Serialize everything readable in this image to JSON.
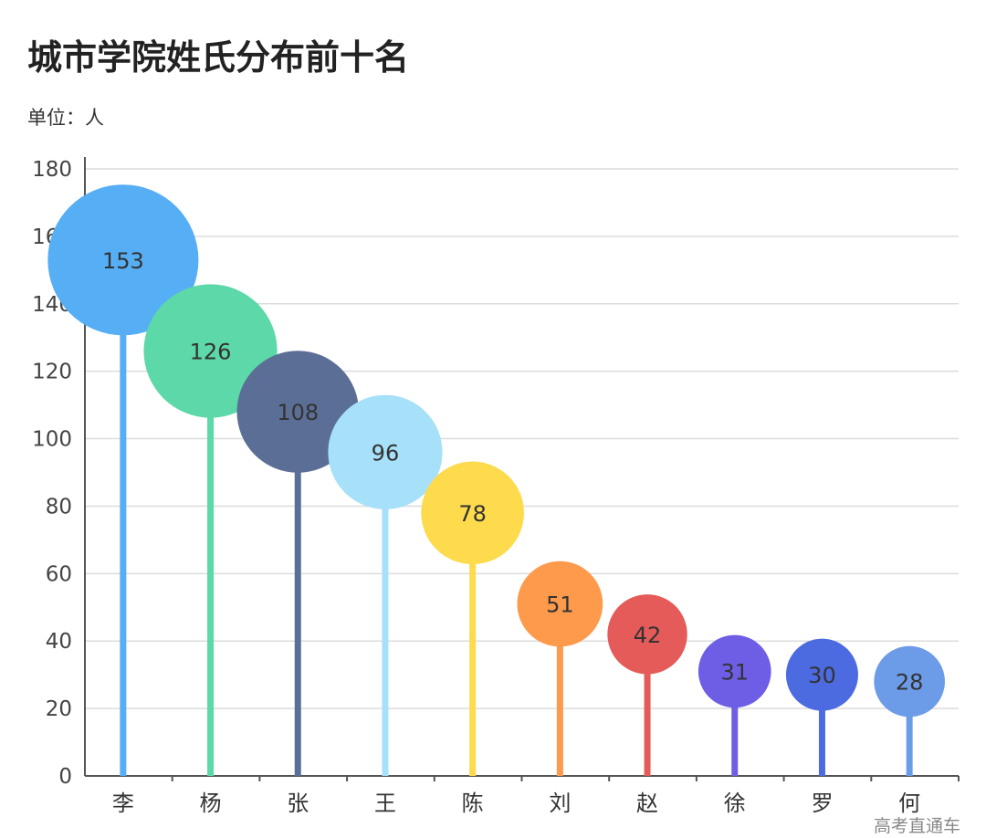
{
  "chart_data": {
    "type": "scatter",
    "subtype": "lollipop-bubble",
    "title": "城市学院姓氏分布前十名",
    "subtitle": "单位：人",
    "categories": [
      "李",
      "杨",
      "张",
      "王",
      "陈",
      "刘",
      "赵",
      "徐",
      "罗",
      "何"
    ],
    "values": [
      153,
      126,
      108,
      96,
      78,
      51,
      42,
      31,
      30,
      28
    ],
    "colors": [
      "#56aef5",
      "#5dd8a9",
      "#5b6e96",
      "#a6e0f9",
      "#fddb4c",
      "#fd9a4c",
      "#e45b59",
      "#6e5ee6",
      "#4c6be0",
      "#6c9be8"
    ],
    "ylim": [
      0,
      180
    ],
    "yticks": [
      0,
      20,
      40,
      60,
      80,
      100,
      120,
      140,
      160,
      180
    ],
    "grid": true,
    "data_labels": true
  },
  "watermark": "高考直通车"
}
